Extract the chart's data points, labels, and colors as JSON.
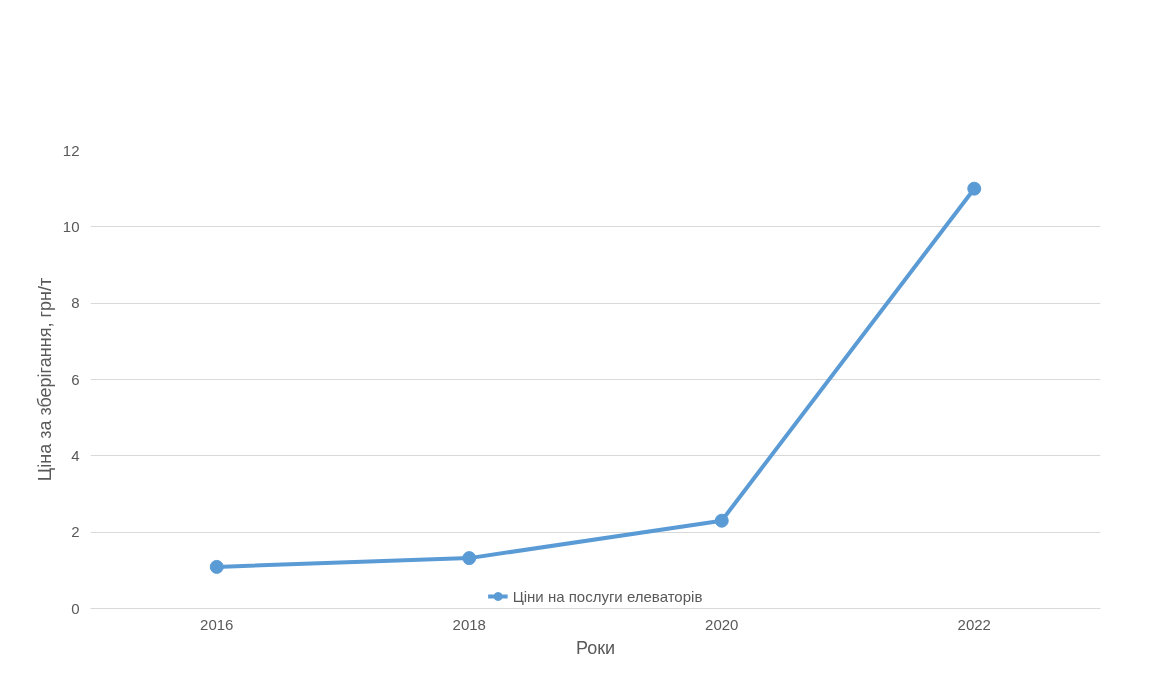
{
  "chart_data": {
    "type": "line",
    "xlabel": "Роки",
    "ylabel": "Ціна за зберігання, грн/т",
    "categories": [
      "2016",
      "2018",
      "2020",
      "2022"
    ],
    "series": [
      {
        "name": "Ціни на послуги елеваторів",
        "color": "#5b9bd5",
        "values": [
          1.09,
          1.32,
          2.3,
          11.0
        ]
      }
    ],
    "ylim": [
      0,
      12
    ],
    "yticks": [
      0,
      2,
      4,
      6,
      8,
      10,
      12
    ],
    "grid": "y",
    "legend": "bottom",
    "marker": "circle",
    "line_style": "solid"
  }
}
